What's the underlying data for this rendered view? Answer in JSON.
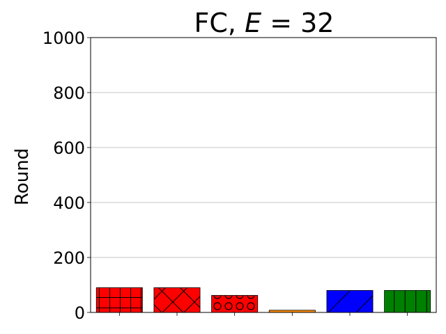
{
  "chart_data": {
    "type": "bar",
    "title_prefix": "FC, ",
    "title_var": "E",
    "title_eq": " = 32",
    "xlabel": "",
    "ylabel": "Round",
    "ylim": [
      0,
      1000
    ],
    "yticks": [
      0,
      200,
      400,
      600,
      800,
      1000
    ],
    "grid": "horizontal",
    "categories": [
      "",
      "",
      "",
      "",
      "",
      ""
    ],
    "values": [
      90,
      90,
      62,
      8,
      80,
      80
    ],
    "bar_colors": [
      "#ff0000",
      "#ff0000",
      "#ff0000",
      "#ff8c00",
      "#0000ff",
      "#008000"
    ],
    "bar_hatches": [
      "grid",
      "crosshatch",
      "circles",
      "none",
      "diagonal",
      "vertical"
    ]
  }
}
